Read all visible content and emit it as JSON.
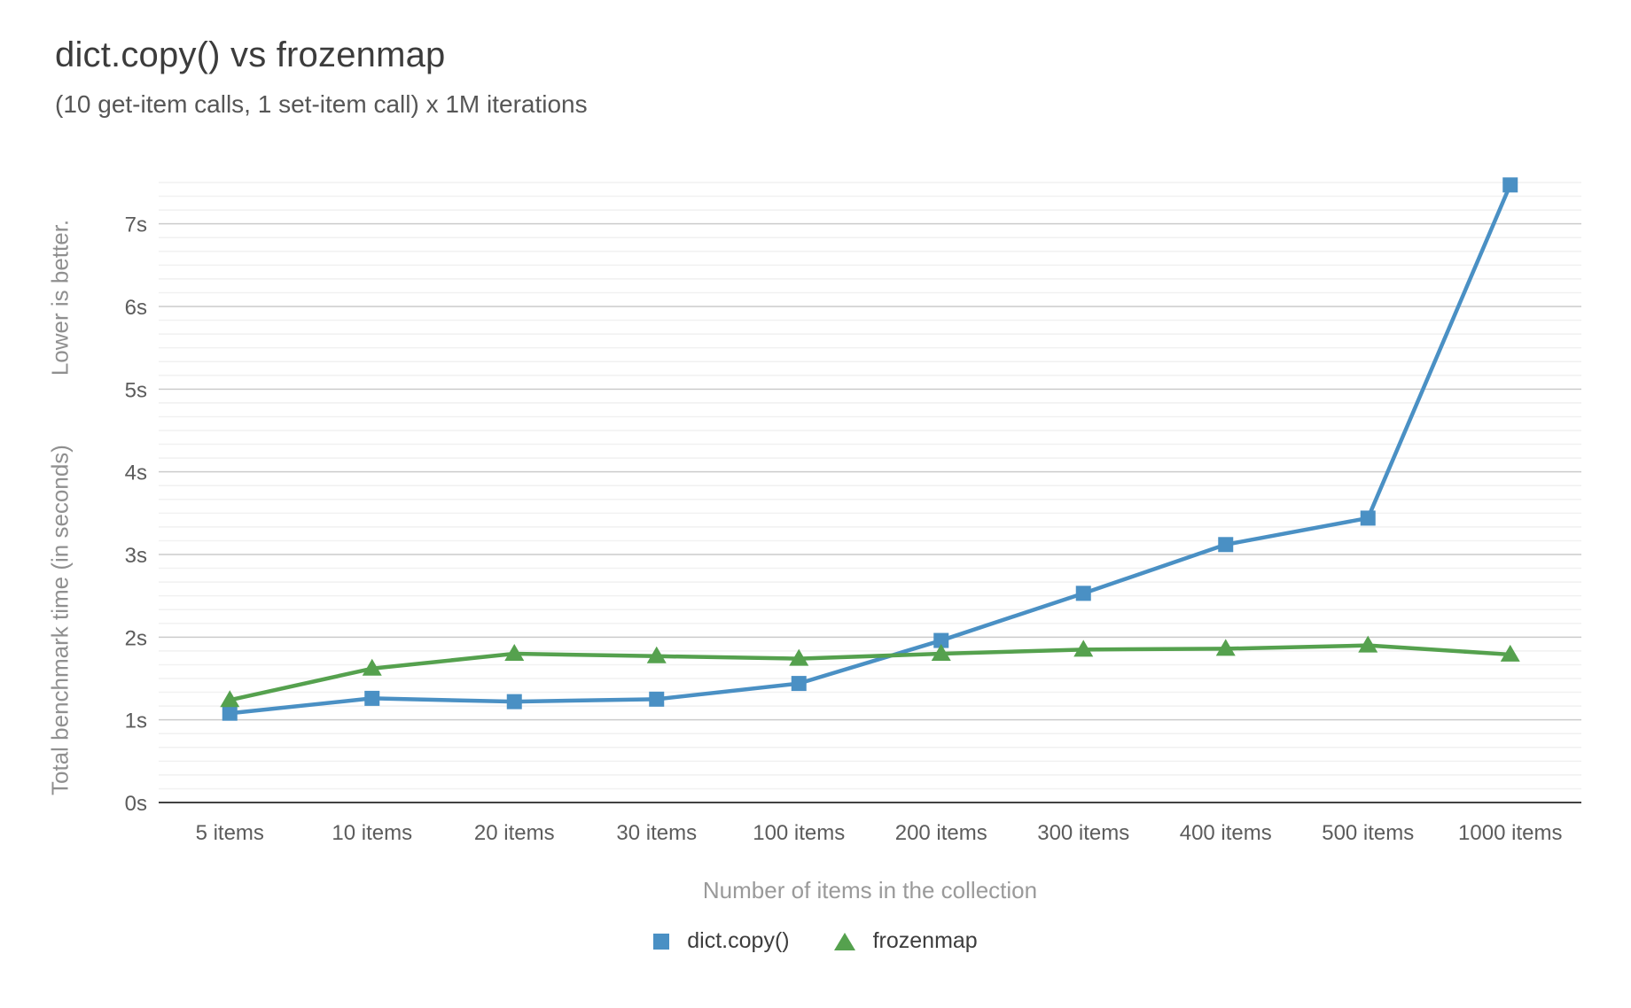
{
  "title": "dict.copy() vs frozenmap",
  "subtitle": "(10 get-item calls, 1 set-item call) x 1M iterations",
  "y_axis": {
    "note": "Lower is better.",
    "title": "Total benchmark time (in seconds)"
  },
  "x_axis": {
    "title": "Number of items in the collection"
  },
  "chart_data": {
    "type": "line",
    "title": "dict.copy() vs frozenmap",
    "subtitle": "(10 get-item calls, 1 set-item call) x 1M iterations",
    "categories": [
      "5 items",
      "10 items",
      "20 items",
      "30 items",
      "100 items",
      "200 items",
      "300 items",
      "400 items",
      "500 items",
      "1000 items"
    ],
    "series": [
      {
        "name": "dict.copy()",
        "color": "#4a90c4",
        "marker": "square",
        "values": [
          1.08,
          1.26,
          1.22,
          1.25,
          1.44,
          1.96,
          2.53,
          3.12,
          3.44,
          7.47
        ]
      },
      {
        "name": "frozenmap",
        "color": "#55a14e",
        "marker": "triangle",
        "values": [
          1.24,
          1.62,
          1.8,
          1.77,
          1.74,
          1.8,
          1.85,
          1.86,
          1.9,
          1.79
        ]
      }
    ],
    "xlabel": "Number of items in the collection",
    "ylabel": "Total benchmark time (in seconds)",
    "ylabel_note": "Lower is better.",
    "yticks": [
      "0s",
      "1s",
      "2s",
      "3s",
      "4s",
      "5s",
      "6s",
      "7s"
    ],
    "ylim": [
      0,
      7.5
    ],
    "grid": {
      "major_interval_seconds": 1,
      "minor_divisions_per_major": 6,
      "gridlines": "on"
    },
    "legend_position": "bottom"
  }
}
